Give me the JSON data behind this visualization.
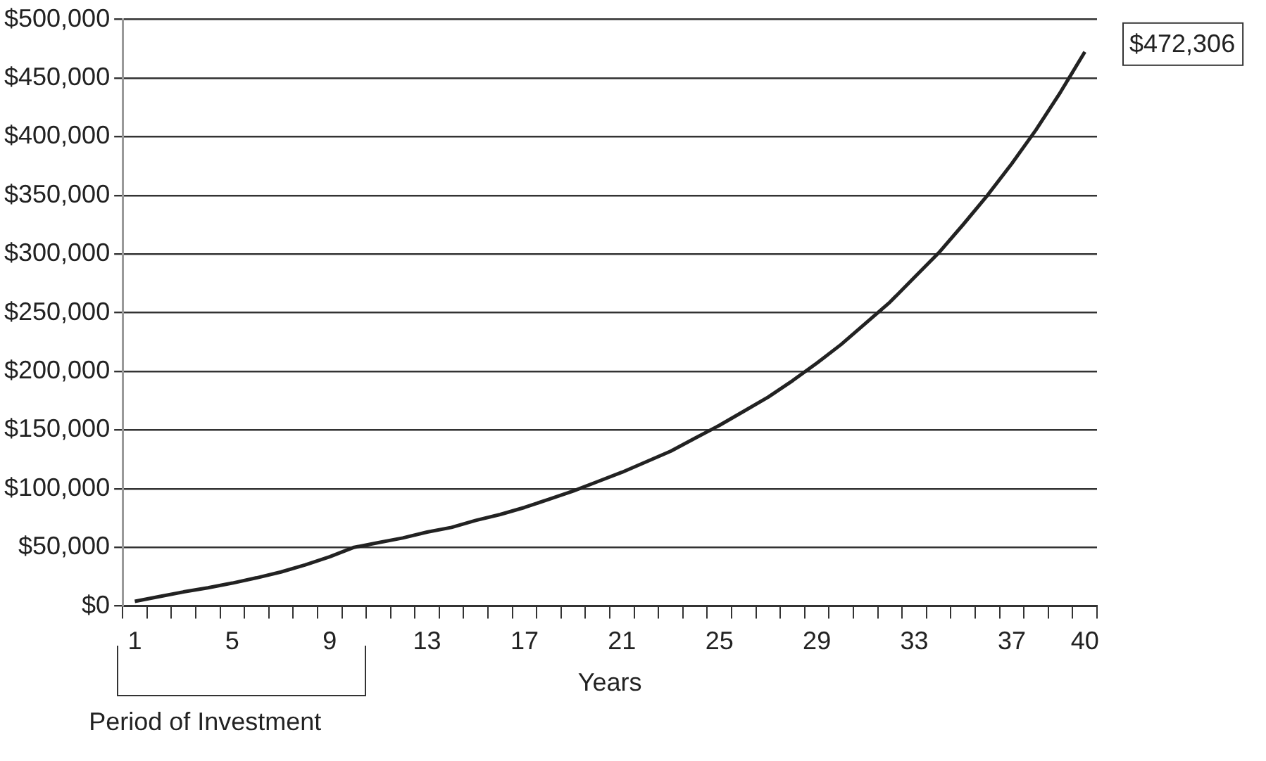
{
  "chart_data": {
    "type": "line",
    "xlabel": "Years",
    "categories": [
      "1",
      null,
      null,
      null,
      "5",
      null,
      null,
      null,
      "9",
      null,
      null,
      null,
      "13",
      null,
      null,
      null,
      "17",
      null,
      null,
      null,
      "21",
      null,
      null,
      null,
      "25",
      null,
      null,
      null,
      "29",
      null,
      null,
      null,
      "33",
      null,
      null,
      null,
      "37",
      null,
      null,
      "40"
    ],
    "series": [
      {
        "color": "#222222",
        "values": [
          4000,
          8000,
          12000,
          15500,
          19500,
          24000,
          29000,
          35000,
          42000,
          50000,
          54000,
          58000,
          63000,
          67000,
          73000,
          78000,
          84000,
          91000,
          98000,
          106000,
          114000,
          123000,
          132000,
          143000,
          154000,
          166000,
          178000,
          192000,
          207000,
          223000,
          241000,
          259000,
          280000,
          301000,
          325000,
          350000,
          377000,
          406000,
          438000,
          472306
        ]
      }
    ],
    "ylim": [
      0,
      500000
    ],
    "yticks": [
      {
        "value": 0,
        "label": "$0"
      },
      {
        "value": 50000,
        "label": "$50,000"
      },
      {
        "value": 100000,
        "label": "$100,000"
      },
      {
        "value": 150000,
        "label": "$150,000"
      },
      {
        "value": 200000,
        "label": "$200,000"
      },
      {
        "value": 250000,
        "label": "$250,000"
      },
      {
        "value": 300000,
        "label": "$300,000"
      },
      {
        "value": 350000,
        "label": "$350,000"
      },
      {
        "value": 400000,
        "label": "$400,000"
      },
      {
        "value": 450000,
        "label": "$450,000"
      },
      {
        "value": 500000,
        "label": "$500,000"
      }
    ],
    "grid": "y",
    "marker": "none",
    "line_style": "solid",
    "legend": false,
    "annotations": [
      {
        "text": "$472,306",
        "x": "40",
        "y": 472306
      },
      "Period of Investment"
    ]
  }
}
